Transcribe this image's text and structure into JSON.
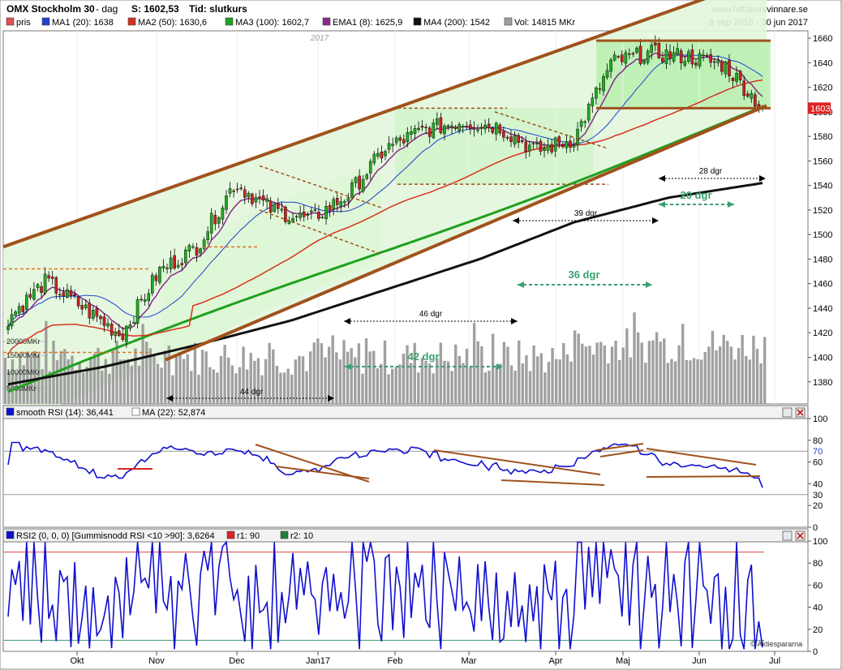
{
  "header": {
    "title": "OMX Stockholm 30",
    "period": "- dag",
    "last_label": "S: 1602,53",
    "tid_label": "Tid: slutkurs",
    "site": "www.hittakursvinnare.se",
    "date_range": "8 sep 2016 - 30 jun 2017"
  },
  "legend": [
    {
      "label": "pris",
      "color": "#e05050"
    },
    {
      "label": "MA1 (20): 1638",
      "color": "#2040d0"
    },
    {
      "label": "MA2 (50): 1630,6",
      "color": "#d83020"
    },
    {
      "label": "MA3 (100): 1602,7",
      "color": "#20a020"
    },
    {
      "label": "EMA1 (8): 1625,9",
      "color": "#8a2a8a"
    },
    {
      "label": "MA4 (200): 1542",
      "color": "#111111"
    },
    {
      "label": "Vol: 14815 MKr",
      "color": "#a0a0a0"
    }
  ],
  "colors": {
    "channel": "#a0521d",
    "ma1": "#2040d0",
    "ma2": "#d83020",
    "ma3": "#20a020",
    "ma4": "#111111",
    "ema1": "#8a2a8a",
    "rsi": "#1010d0",
    "volume": "#a0a0a0",
    "arrow_green": "#3aa070",
    "channel_fill": "#e2f7dc",
    "rect_fill": "#b8f0b0",
    "last_price_bg": "#dd2222"
  },
  "panel_labels": {
    "year_marker": "2017",
    "last_price_tag": "1603",
    "volume_labels": [
      "20000MKr",
      "15000MKr",
      "10000MKr",
      "5000MKr"
    ]
  },
  "annotations": [
    {
      "text": "28 dgr",
      "style": "small"
    },
    {
      "text": "20 dgr",
      "style": "bold-green"
    },
    {
      "text": "39 dgr",
      "style": "small"
    },
    {
      "text": "36 dgr",
      "style": "bold-green"
    },
    {
      "text": "46 dgr",
      "style": "small"
    },
    {
      "text": "42 dgr",
      "style": "bold-green"
    },
    {
      "text": "44 dgr",
      "style": "small"
    }
  ],
  "rsi_panel": {
    "label": "smooth RSI (14): 36,441",
    "ma_label": "MA (22): 52,874",
    "level_label": "70",
    "ticks": [
      "100",
      "80",
      "60",
      "40",
      "20",
      "0"
    ],
    "ticks_right": [
      "30"
    ]
  },
  "rsi2_panel": {
    "label": "RSI2 (0, 0, 0) [Gummisnodd RSI <10 >90]: 3,6264",
    "r1_label": "r1: 90",
    "r2_label": "r2: 10",
    "ticks": [
      "100",
      "80",
      "60",
      "40",
      "20",
      "0"
    ],
    "watermark": "© Aktiespararna"
  },
  "chart_data": {
    "type": "candlestick",
    "title": "OMX Stockholm 30",
    "x_labels": [
      "Okt",
      "Nov",
      "Dec",
      "Jan17",
      "Feb",
      "Mar",
      "Apr",
      "Maj",
      "Jun",
      "Jul"
    ],
    "price_ticks": [
      1380,
      1400,
      1420,
      1440,
      1460,
      1480,
      1500,
      1520,
      1540,
      1560,
      1580,
      1600,
      1620,
      1640,
      1660
    ],
    "ylim": [
      1362,
      1666
    ],
    "last_price": 1603,
    "close_series": [
      {
        "month": "Sep",
        "close": 1432
      },
      {
        "month": "Okt",
        "close": 1462
      },
      {
        "month": "Okt",
        "close": 1440
      },
      {
        "month": "Nov",
        "close": 1418
      },
      {
        "month": "Nov",
        "close": 1470
      },
      {
        "month": "Nov",
        "close": 1490
      },
      {
        "month": "Dec",
        "close": 1542
      },
      {
        "month": "Dec",
        "close": 1520
      },
      {
        "month": "Jan17",
        "close": 1512
      },
      {
        "month": "Jan17",
        "close": 1532
      },
      {
        "month": "Feb",
        "close": 1570
      },
      {
        "month": "Feb",
        "close": 1585
      },
      {
        "month": "Mar",
        "close": 1592
      },
      {
        "month": "Mar",
        "close": 1588
      },
      {
        "month": "Apr",
        "close": 1568
      },
      {
        "month": "Apr",
        "close": 1578
      },
      {
        "month": "Maj",
        "close": 1640
      },
      {
        "month": "Maj",
        "close": 1648
      },
      {
        "month": "Jun",
        "close": 1645
      },
      {
        "month": "Jun",
        "close": 1638
      },
      {
        "month": "Jun",
        "close": 1603
      }
    ],
    "ma4_200": [
      1378,
      1392,
      1410,
      1430,
      1455,
      1480,
      1510,
      1530,
      1542
    ],
    "rsi_smooth_last": 36.441,
    "rsi_ma22_last": 52.874,
    "rsi_levels": [
      70,
      30
    ],
    "rsi2_last": 3.6264,
    "rsi2_levels": [
      90,
      10
    ],
    "rsi_axis": [
      0,
      100
    ],
    "volume_last_mkr": 14815
  }
}
